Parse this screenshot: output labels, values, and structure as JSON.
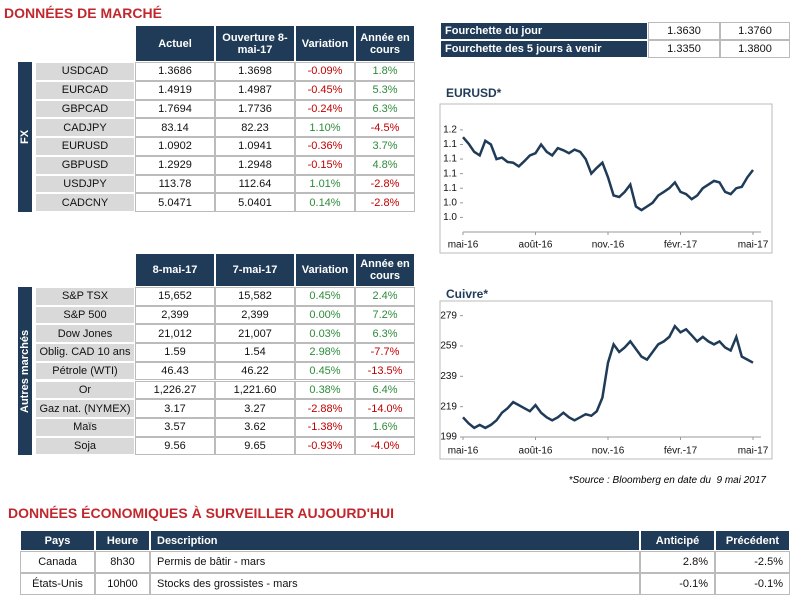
{
  "title": "DONNÉES DE MARCHÉ",
  "fx": {
    "label": "FX",
    "headers": [
      "Actuel",
      "Ouverture 8-mai-17",
      "Variation",
      "Année en cours"
    ],
    "rows": [
      [
        "USDCAD",
        "1.3686",
        "1.3698",
        "-0.09%",
        "1.8%"
      ],
      [
        "EURCAD",
        "1.4919",
        "1.4987",
        "-0.45%",
        "5.3%"
      ],
      [
        "GBPCAD",
        "1.7694",
        "1.7736",
        "-0.24%",
        "6.3%"
      ],
      [
        "CADJPY",
        "83.14",
        "82.23",
        "1.10%",
        "-4.5%"
      ],
      [
        "EURUSD",
        "1.0902",
        "1.0941",
        "-0.36%",
        "3.7%"
      ],
      [
        "GBPUSD",
        "1.2929",
        "1.2948",
        "-0.15%",
        "4.8%"
      ],
      [
        "USDJPY",
        "113.78",
        "112.64",
        "1.01%",
        "-2.8%"
      ],
      [
        "CADCNY",
        "5.0471",
        "5.0401",
        "0.14%",
        "-2.8%"
      ]
    ]
  },
  "markets": {
    "label": "Autres marchés",
    "headers": [
      "8-mai-17",
      "7-mai-17",
      "Variation",
      "Année en cours"
    ],
    "rows": [
      [
        "S&P TSX",
        "15,652",
        "15,582",
        "0.45%",
        "2.4%"
      ],
      [
        "S&P 500",
        "2,399",
        "2,399",
        "0.00%",
        "7.2%"
      ],
      [
        "Dow Jones",
        "21,012",
        "21,007",
        "0.03%",
        "6.3%"
      ],
      [
        "Oblig. CAD 10 ans",
        "1.59",
        "1.54",
        "2.98%",
        "-7.7%"
      ],
      [
        "Pétrole (WTI)",
        "46.43",
        "46.22",
        "0.45%",
        "-13.5%"
      ],
      [
        "Or",
        "1,226.27",
        "1,221.60",
        "0.38%",
        "6.4%"
      ],
      [
        "Gaz nat. (NYMEX)",
        "3.17",
        "3.27",
        "-2.88%",
        "-14.0%"
      ],
      [
        "Maïs",
        "3.57",
        "3.62",
        "-1.38%",
        "1.6%"
      ],
      [
        "Soja",
        "9.56",
        "9.65",
        "-0.93%",
        "-4.0%"
      ]
    ]
  },
  "range": {
    "rows": [
      [
        "Fourchette du jour",
        "1.3630",
        "1.3760"
      ],
      [
        "Fourchette des 5 jours à venir",
        "1.3350",
        "1.3800"
      ]
    ]
  },
  "chart_data": [
    {
      "type": "line",
      "title": "EURUSD*",
      "color": "#1f3b57",
      "categories": [
        "mai-16",
        null,
        null,
        null,
        null,
        null,
        null,
        null,
        null,
        null,
        null,
        null,
        null,
        "août-16",
        null,
        null,
        null,
        null,
        null,
        null,
        null,
        null,
        null,
        null,
        null,
        null,
        "nov.-16",
        null,
        null,
        null,
        null,
        null,
        null,
        null,
        null,
        null,
        null,
        null,
        null,
        "févr.-17",
        null,
        null,
        null,
        null,
        null,
        null,
        null,
        null,
        null,
        null,
        null,
        null,
        "mai-17"
      ],
      "values": [
        1.14,
        1.131,
        1.12,
        1.115,
        1.135,
        1.13,
        1.11,
        1.112,
        1.106,
        1.105,
        1.1,
        1.107,
        1.115,
        1.118,
        1.13,
        1.12,
        1.115,
        1.125,
        1.122,
        1.118,
        1.123,
        1.12,
        1.11,
        1.09,
        1.098,
        1.105,
        1.085,
        1.06,
        1.058,
        1.065,
        1.075,
        1.045,
        1.04,
        1.045,
        1.05,
        1.06,
        1.065,
        1.07,
        1.078,
        1.065,
        1.062,
        1.055,
        1.06,
        1.07,
        1.075,
        1.08,
        1.078,
        1.065,
        1.062,
        1.07,
        1.072,
        1.085,
        1.095
      ],
      "ylim": [
        1.01,
        1.18
      ],
      "yticks": [
        {
          "value": 1.15,
          "label": "1.2"
        },
        {
          "value": 1.13,
          "label": "1.1"
        },
        {
          "value": 1.11,
          "label": "1.1"
        },
        {
          "value": 1.09,
          "label": "1.1"
        },
        {
          "value": 1.07,
          "label": "1.1"
        },
        {
          "value": 1.05,
          "label": "1.0"
        },
        {
          "value": 1.03,
          "label": "1.0"
        }
      ]
    },
    {
      "type": "line",
      "title": "Cuivre*",
      "color": "#1f3b57",
      "categories": [
        "mai-16",
        null,
        null,
        null,
        null,
        null,
        null,
        null,
        null,
        null,
        null,
        null,
        null,
        "août-16",
        null,
        null,
        null,
        null,
        null,
        null,
        null,
        null,
        null,
        null,
        null,
        null,
        "nov.-16",
        null,
        null,
        null,
        null,
        null,
        null,
        null,
        null,
        null,
        null,
        null,
        null,
        "févr.-17",
        null,
        null,
        null,
        null,
        null,
        null,
        null,
        null,
        null,
        null,
        null,
        null,
        "mai-17"
      ],
      "values": [
        212,
        208,
        205,
        207,
        205,
        207,
        210,
        215,
        218,
        222,
        220,
        218,
        216,
        220,
        215,
        212,
        210,
        212,
        215,
        212,
        210,
        212,
        214,
        213,
        216,
        225,
        248,
        260,
        255,
        258,
        262,
        257,
        252,
        250,
        255,
        260,
        262,
        265,
        272,
        268,
        270,
        266,
        262,
        265,
        262,
        260,
        262,
        258,
        256,
        265,
        252,
        250,
        248
      ],
      "ylim": [
        199,
        286
      ],
      "yticks": [
        279,
        259,
        239,
        219,
        199
      ]
    }
  ],
  "source": "*Source : Bloomberg en date du  9 mai 2017",
  "eco": {
    "title": "DONNÉES ÉCONOMIQUES À SURVEILLER AUJOURD'HUI",
    "headers": [
      "Pays",
      "Heure",
      "Description",
      "Anticipé",
      "Précédent"
    ],
    "rows": [
      [
        "Canada",
        "8h30",
        "Permis de bâtir - mars",
        "2.8%",
        "-2.5%"
      ],
      [
        "États-Unis",
        "10h00",
        "Stocks des grossistes - mars",
        "-0.1%",
        "-0.1%"
      ]
    ]
  }
}
